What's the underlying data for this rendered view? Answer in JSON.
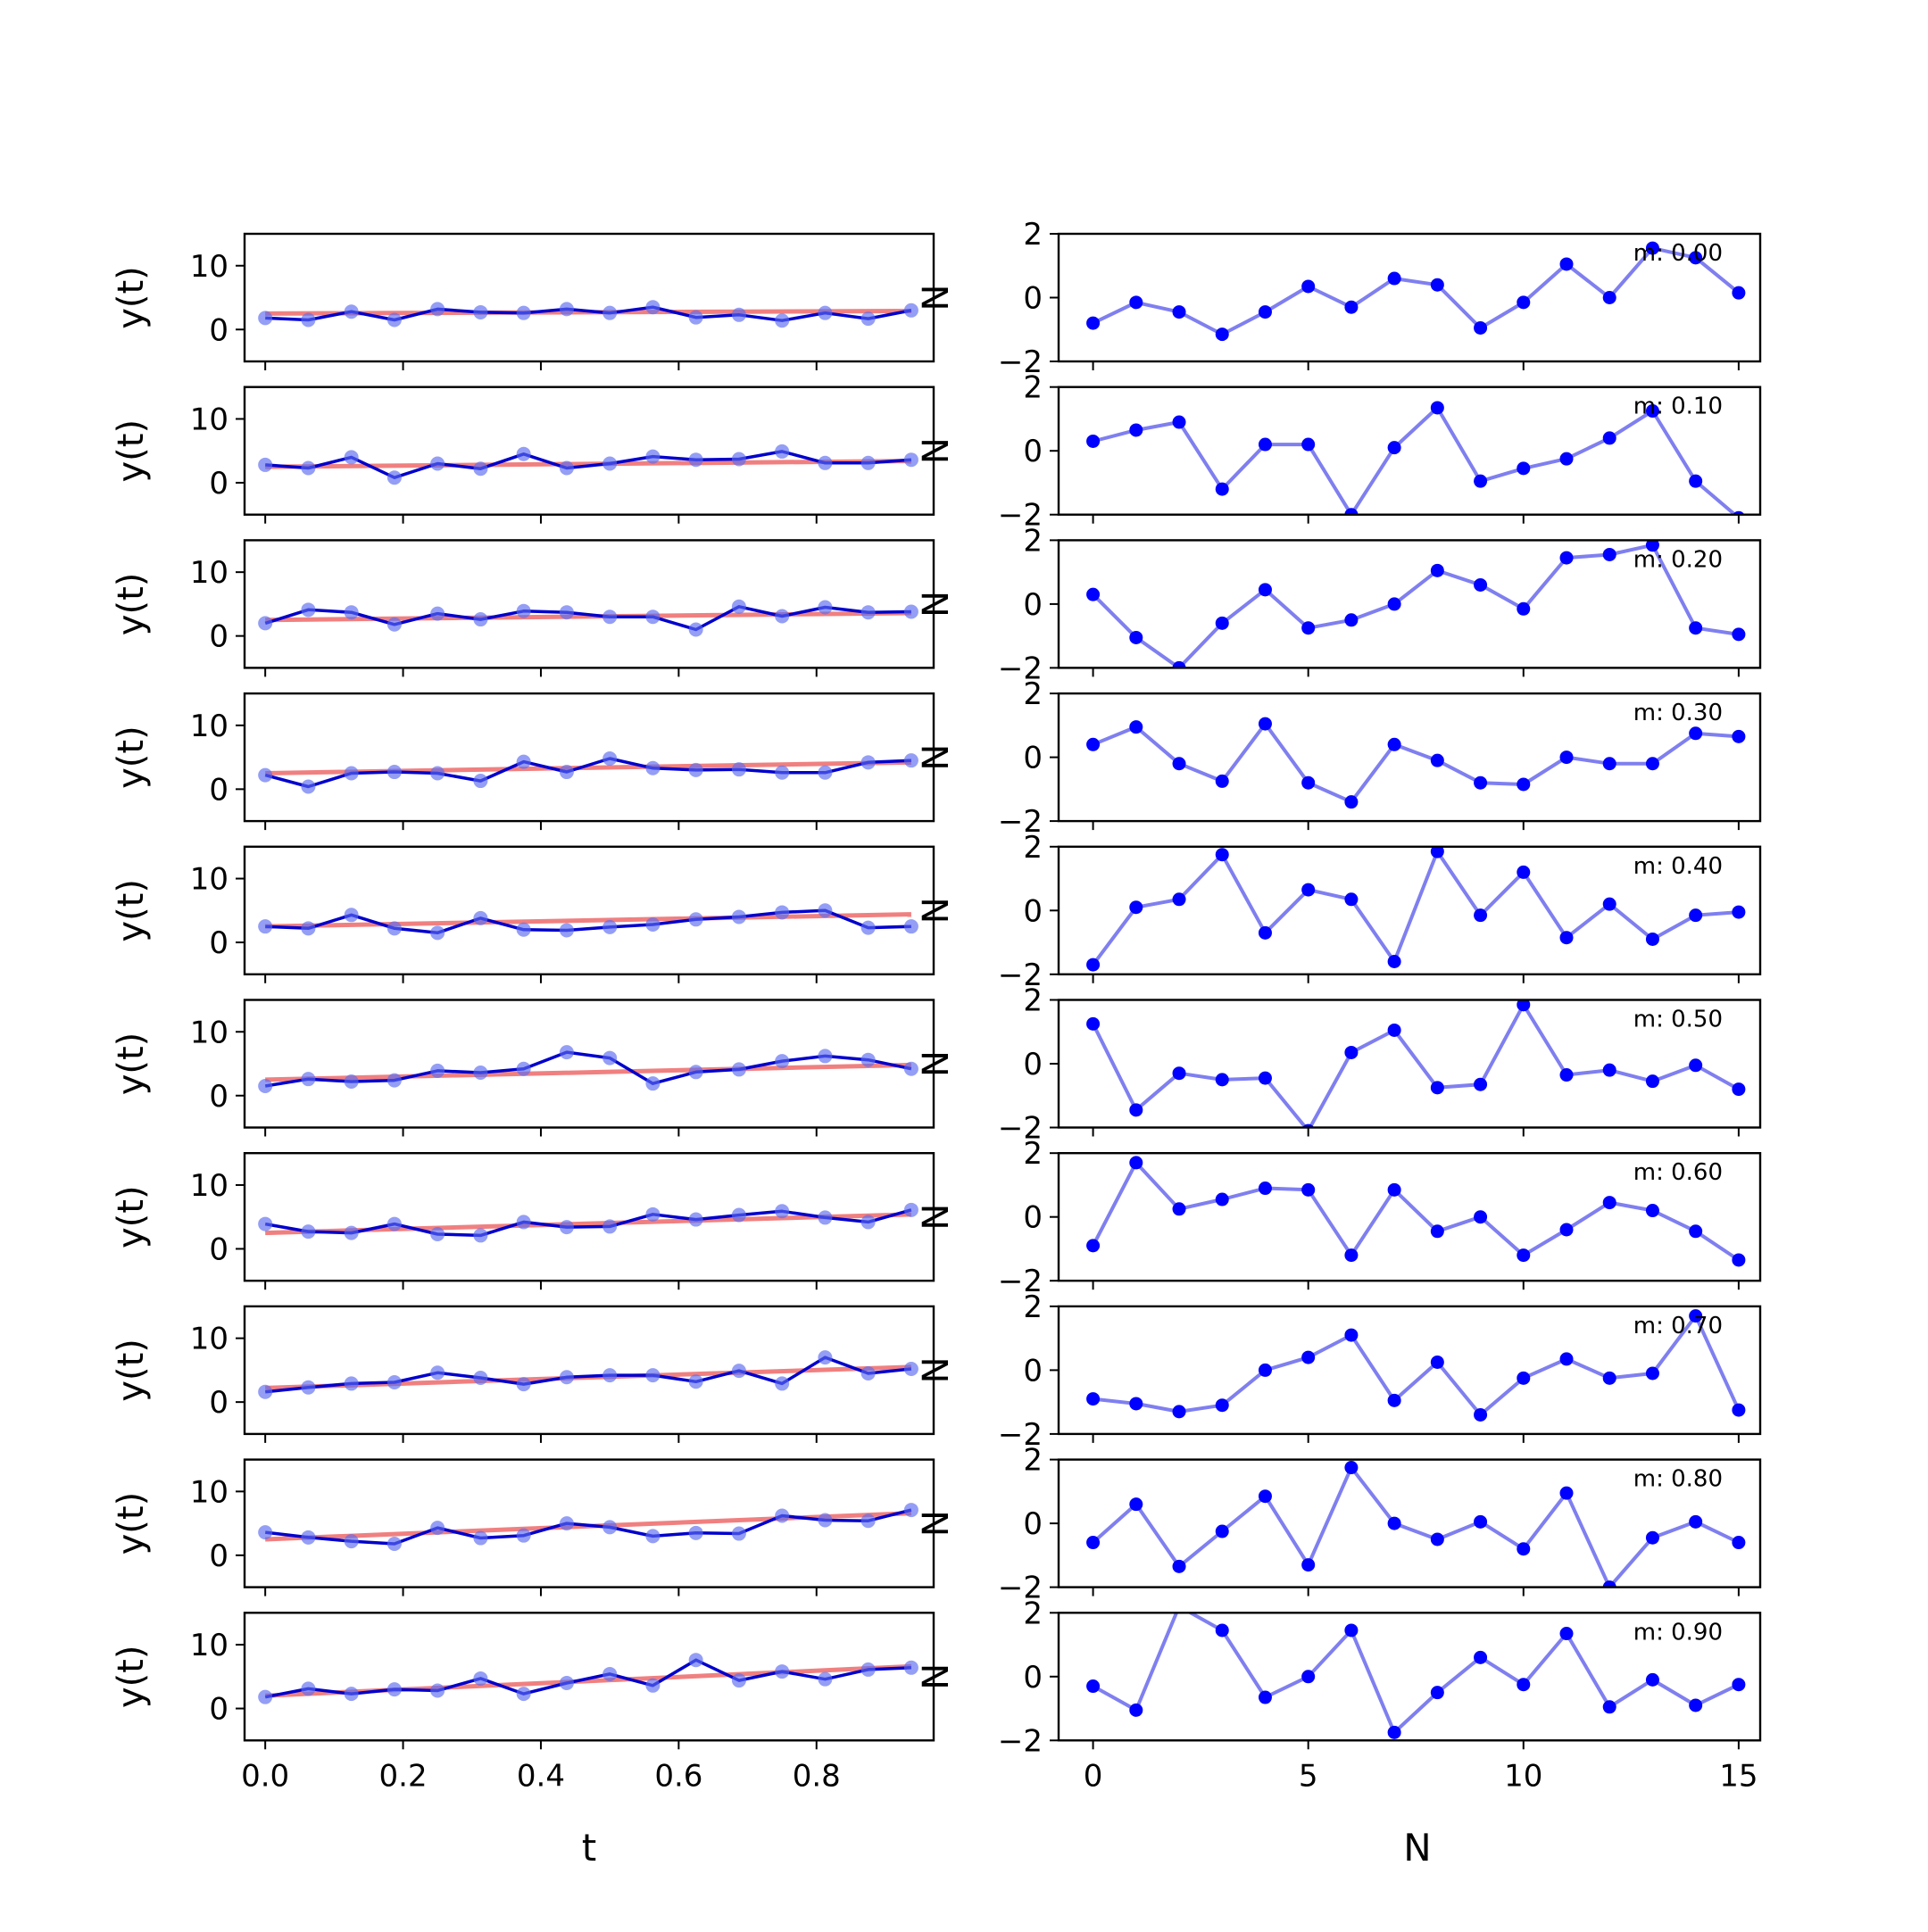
{
  "figure": {
    "left_xlabel": "t",
    "right_xlabel": "N",
    "left_ylabel": "y(t)",
    "right_ylabel": "N"
  },
  "chart_data": {
    "type": "line",
    "left_panels": {
      "x_ticks": [
        0.0,
        0.2,
        0.4,
        0.6,
        0.8
      ],
      "x_tick_labels": [
        "0.0",
        "0.2",
        "0.4",
        "0.6",
        "0.8"
      ],
      "y_ticks": [
        0,
        10
      ],
      "y_tick_labels": [
        "0",
        "10"
      ],
      "xlim": [
        -0.03,
        0.97
      ],
      "ylim": [
        -5,
        15
      ],
      "t": [
        0,
        0.0625,
        0.125,
        0.1875,
        0.25,
        0.3125,
        0.375,
        0.4375,
        0.5,
        0.5625,
        0.625,
        0.6875,
        0.75,
        0.8125,
        0.875,
        0.9375
      ],
      "colors": {
        "data": "#0000cc",
        "fit": "#f08080",
        "markers": "#5a6aef"
      }
    },
    "right_panels": {
      "x_ticks": [
        0,
        5,
        10,
        15
      ],
      "x_tick_labels": [
        "0",
        "5",
        "10",
        "15"
      ],
      "y_ticks": [
        -2,
        0,
        2
      ],
      "y_tick_labels": [
        "−2",
        "0",
        "2"
      ],
      "xlim": [
        -0.8,
        15.5
      ],
      "ylim": [
        -2,
        2
      ],
      "N": [
        0,
        1,
        2,
        3,
        4,
        5,
        6,
        7,
        8,
        9,
        10,
        11,
        12,
        13,
        14,
        15
      ],
      "colors": {
        "line": "#7f7ff0",
        "markers": "#0000ff"
      }
    },
    "series": [
      {
        "m_label": "m: 0.00",
        "fit": [
          2.5,
          2.9
        ],
        "y": [
          1.8,
          1.5,
          2.8,
          1.5,
          3.2,
          2.7,
          2.6,
          3.2,
          2.6,
          3.5,
          1.9,
          2.3,
          1.4,
          2.6,
          1.7,
          3.0
        ],
        "noise": [
          -0.8,
          -0.15,
          -0.45,
          -1.15,
          -0.45,
          0.35,
          -0.3,
          0.6,
          0.4,
          -0.95,
          -0.15,
          1.05,
          0.0,
          1.55,
          1.25,
          0.15
        ]
      },
      {
        "m_label": "m: 0.10",
        "fit": [
          2.5,
          3.4
        ],
        "y": [
          2.8,
          2.3,
          4.0,
          0.8,
          3.0,
          2.2,
          4.5,
          2.3,
          3.0,
          4.1,
          3.6,
          3.7,
          4.9,
          3.1,
          3.1,
          3.6
        ],
        "noise": [
          0.3,
          0.65,
          0.9,
          -1.2,
          0.2,
          0.2,
          -2.0,
          0.1,
          1.35,
          -0.95,
          -0.55,
          -0.25,
          0.4,
          1.25,
          -0.95,
          -2.1
        ]
      },
      {
        "m_label": "m: 0.20",
        "fit": [
          2.5,
          3.6
        ],
        "y": [
          2.0,
          4.1,
          3.7,
          1.8,
          3.5,
          2.6,
          3.9,
          3.7,
          3.0,
          3.0,
          1.0,
          4.6,
          3.1,
          4.5,
          3.7,
          3.8
        ],
        "noise": [
          0.3,
          -1.05,
          -2.0,
          -0.6,
          0.45,
          -0.75,
          -0.5,
          0.0,
          1.05,
          0.6,
          -0.15,
          1.45,
          1.55,
          1.85,
          -0.75,
          -0.95
        ]
      },
      {
        "m_label": "m: 0.30",
        "fit": [
          2.5,
          4.2
        ],
        "y": [
          2.2,
          0.4,
          2.5,
          2.7,
          2.5,
          1.3,
          4.3,
          2.7,
          4.8,
          3.3,
          3.0,
          3.1,
          2.6,
          2.6,
          4.2,
          4.5
        ],
        "noise": [
          0.4,
          0.95,
          -0.2,
          -0.75,
          1.05,
          -0.8,
          -1.4,
          0.4,
          -0.1,
          -0.8,
          -0.85,
          0.0,
          -0.2,
          -0.2,
          0.75,
          0.65
        ]
      },
      {
        "m_label": "m: 0.40",
        "fit": [
          2.5,
          4.4
        ],
        "y": [
          2.5,
          2.2,
          4.3,
          2.2,
          1.5,
          3.8,
          2.0,
          1.9,
          2.4,
          2.8,
          3.6,
          4.0,
          4.7,
          5.0,
          2.3,
          2.5
        ],
        "noise": [
          -1.7,
          0.1,
          0.35,
          1.75,
          -0.7,
          0.65,
          0.35,
          -1.6,
          1.85,
          -0.15,
          1.2,
          -0.85,
          0.2,
          -0.9,
          -0.15,
          -0.05
        ]
      },
      {
        "m_label": "m: 0.50",
        "fit": [
          2.5,
          4.8
        ],
        "y": [
          1.5,
          2.6,
          2.2,
          2.4,
          3.9,
          3.6,
          4.2,
          6.8,
          5.9,
          1.9,
          3.7,
          4.1,
          5.4,
          6.2,
          5.6,
          4.2
        ],
        "noise": [
          1.25,
          -1.45,
          -0.3,
          -0.5,
          -0.45,
          -2.1,
          0.35,
          1.05,
          -0.75,
          -0.65,
          1.85,
          -0.35,
          -0.2,
          -0.55,
          -0.05,
          -0.8
        ]
      },
      {
        "m_label": "m: 0.60",
        "fit": [
          2.5,
          5.4
        ],
        "y": [
          3.9,
          2.7,
          2.5,
          3.9,
          2.3,
          2.1,
          4.2,
          3.4,
          3.5,
          5.4,
          4.6,
          5.3,
          5.9,
          4.9,
          4.2,
          6.1
        ],
        "noise": [
          -0.9,
          1.7,
          0.25,
          0.55,
          0.9,
          0.85,
          -1.2,
          0.85,
          -0.45,
          0.0,
          -1.2,
          -0.4,
          0.45,
          0.2,
          -0.45,
          -1.35
        ]
      },
      {
        "m_label": "m: 0.70",
        "fit": [
          2.2,
          5.5
        ],
        "y": [
          1.6,
          2.3,
          2.9,
          3.1,
          4.6,
          3.8,
          2.8,
          3.9,
          4.2,
          4.2,
          3.2,
          4.9,
          2.9,
          7.0,
          4.5,
          5.2
        ],
        "noise": [
          -0.9,
          -1.05,
          -1.3,
          -1.1,
          0.0,
          0.4,
          1.1,
          -0.95,
          0.25,
          -1.4,
          -0.25,
          0.35,
          -0.25,
          -0.1,
          1.7,
          -1.25
        ]
      },
      {
        "m_label": "m: 0.80",
        "fit": [
          2.5,
          6.6
        ],
        "y": [
          3.6,
          2.8,
          2.2,
          1.8,
          4.3,
          2.7,
          3.1,
          5.0,
          4.4,
          3.0,
          3.5,
          3.4,
          6.2,
          5.5,
          5.4,
          7.1
        ],
        "noise": [
          -0.6,
          0.6,
          -1.35,
          -0.25,
          0.85,
          -1.3,
          1.75,
          0.0,
          -0.5,
          0.05,
          -0.8,
          0.95,
          -2.0,
          -0.45,
          0.05,
          -0.6
        ]
      },
      {
        "m_label": "m: 0.90",
        "fit": [
          2.0,
          6.6
        ],
        "y": [
          1.8,
          3.1,
          2.3,
          3.0,
          2.8,
          4.7,
          2.3,
          4.0,
          5.4,
          3.6,
          7.6,
          4.4,
          5.8,
          4.6,
          6.1,
          6.4
        ],
        "noise": [
          -0.3,
          -1.05,
          2.2,
          1.45,
          -0.65,
          0.0,
          1.45,
          -1.75,
          -0.5,
          0.6,
          -0.25,
          1.35,
          -0.95,
          -0.1,
          -0.9,
          -0.25
        ]
      }
    ]
  }
}
